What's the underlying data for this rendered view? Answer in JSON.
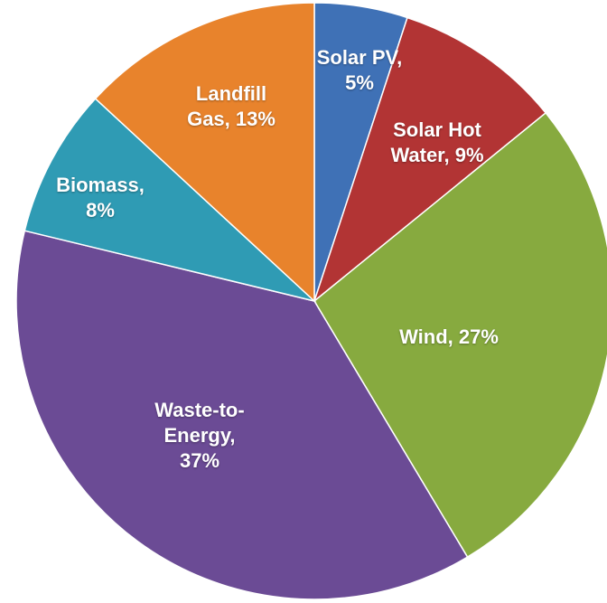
{
  "chart_data": {
    "type": "pie",
    "categories": [
      "Solar PV",
      "Solar Hot Water",
      "Wind",
      "Waste-to-Energy",
      "Biomass",
      "Landfill Gas"
    ],
    "values": [
      5,
      9,
      27,
      37,
      8,
      13
    ],
    "value_labels": [
      "Solar PV, 5%",
      "Solar Hot Water, 9%",
      "Wind, 27%",
      "Waste-to-Energy, 37%",
      "Biomass, 8%",
      "Landfill Gas, 13%"
    ],
    "colors": [
      "#3f71b6",
      "#b23434",
      "#87aa3f",
      "#6b4b95",
      "#2f9bb4",
      "#e8832c"
    ]
  }
}
